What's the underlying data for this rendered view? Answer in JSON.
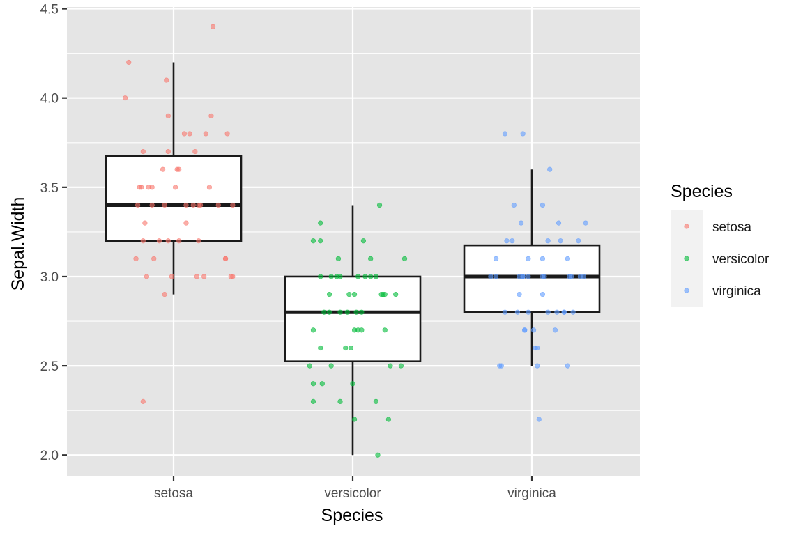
{
  "chart_data": {
    "type": "boxplot",
    "xlabel": "Species",
    "ylabel": "Sepal.Width",
    "categories": [
      "setosa",
      "versicolor",
      "virginica"
    ],
    "ylim": [
      1.88,
      4.51
    ],
    "y_ticks": [
      2.0,
      2.5,
      3.0,
      3.5,
      4.0,
      4.5
    ],
    "y_tick_labels": [
      "2.0",
      "2.5",
      "3.0",
      "3.5",
      "4.0",
      "4.5"
    ],
    "grid": true,
    "legend": {
      "title": "Species",
      "position": "right",
      "entries": [
        {
          "label": "setosa",
          "color": "#F8766D"
        },
        {
          "label": "versicolor",
          "color": "#00BA38"
        },
        {
          "label": "virginica",
          "color": "#619CFF"
        }
      ]
    },
    "boxes": [
      {
        "category": "setosa",
        "whisker_low": 2.9,
        "q1": 3.2,
        "median": 3.4,
        "q3": 3.675,
        "whisker_high": 4.2
      },
      {
        "category": "versicolor",
        "whisker_low": 2.0,
        "q1": 2.525,
        "median": 2.8,
        "q3": 3.0,
        "whisker_high": 3.4
      },
      {
        "category": "virginica",
        "whisker_low": 2.5,
        "q1": 2.8,
        "median": 3.0,
        "q3": 3.175,
        "whisker_high": 3.6
      }
    ],
    "points": {
      "setosa": [
        [
          -0.19,
          3.5
        ],
        [
          0.13,
          3.0
        ],
        [
          -0.08,
          3.2
        ],
        [
          -0.11,
          3.1
        ],
        [
          0.02,
          3.6
        ],
        [
          -0.03,
          3.9
        ],
        [
          0.25,
          3.4
        ],
        [
          0.07,
          3.4
        ],
        [
          -0.05,
          2.9
        ],
        [
          0.29,
          3.1
        ],
        [
          -0.17,
          3.7
        ],
        [
          0.11,
          3.4
        ],
        [
          0.33,
          3.0
        ],
        [
          -0.01,
          3.0
        ],
        [
          -0.27,
          4.0
        ],
        [
          0.22,
          4.4
        ],
        [
          0.21,
          3.9
        ],
        [
          -0.14,
          3.5
        ],
        [
          0.06,
          3.8
        ],
        [
          0.3,
          3.8
        ],
        [
          0.15,
          3.4
        ],
        [
          -0.03,
          3.7
        ],
        [
          -0.06,
          3.6
        ],
        [
          0.07,
          3.3
        ],
        [
          -0.2,
          3.4
        ],
        [
          0.17,
          3.0
        ],
        [
          0.33,
          3.4
        ],
        [
          0.2,
          3.5
        ],
        [
          0.14,
          3.4
        ],
        [
          0.03,
          3.2
        ],
        [
          -0.21,
          3.1
        ],
        [
          -0.05,
          3.4
        ],
        [
          -0.04,
          4.1
        ],
        [
          -0.25,
          4.2
        ],
        [
          0.29,
          3.1
        ],
        [
          -0.17,
          3.2
        ],
        [
          -0.18,
          3.5
        ],
        [
          0.03,
          3.6
        ],
        [
          -0.15,
          3.0
        ],
        [
          -0.12,
          3.4
        ],
        [
          -0.12,
          3.5
        ],
        [
          -0.17,
          2.3
        ],
        [
          0.14,
          3.2
        ],
        [
          0.01,
          3.5
        ],
        [
          0.18,
          3.8
        ],
        [
          0.32,
          3.0
        ],
        [
          0.09,
          3.8
        ],
        [
          -0.03,
          3.2
        ],
        [
          0.12,
          3.7
        ],
        [
          -0.16,
          3.3
        ]
      ],
      "versicolor": [
        [
          -0.18,
          3.2
        ],
        [
          0.06,
          3.2
        ],
        [
          0.1,
          3.1
        ],
        [
          -0.07,
          2.3
        ],
        [
          -0.16,
          2.8
        ],
        [
          -0.13,
          2.8
        ],
        [
          -0.18,
          3.3
        ],
        [
          -0.17,
          2.4
        ],
        [
          0.24,
          2.9
        ],
        [
          -0.22,
          2.7
        ],
        [
          0.14,
          2.0
        ],
        [
          -0.18,
          3.0
        ],
        [
          0.01,
          2.2
        ],
        [
          0.18,
          2.9
        ],
        [
          -0.13,
          2.9
        ],
        [
          0.29,
          3.1
        ],
        [
          -0.07,
          3.0
        ],
        [
          0.01,
          2.7
        ],
        [
          0.2,
          2.2
        ],
        [
          0.27,
          2.5
        ],
        [
          -0.22,
          3.2
        ],
        [
          0.05,
          2.8
        ],
        [
          -0.12,
          2.5
        ],
        [
          -0.03,
          2.8
        ],
        [
          0.16,
          2.9
        ],
        [
          0.1,
          3.0
        ],
        [
          -0.07,
          2.8
        ],
        [
          0.13,
          3.0
        ],
        [
          -0.02,
          2.9
        ],
        [
          -0.18,
          2.6
        ],
        [
          0.0,
          2.4
        ],
        [
          -0.22,
          2.4
        ],
        [
          0.05,
          2.7
        ],
        [
          0.18,
          2.7
        ],
        [
          -0.12,
          3.0
        ],
        [
          0.15,
          3.4
        ],
        [
          -0.08,
          3.1
        ],
        [
          -0.22,
          2.3
        ],
        [
          0.03,
          3.0
        ],
        [
          -0.24,
          2.5
        ],
        [
          -0.01,
          2.6
        ],
        [
          0.07,
          3.0
        ],
        [
          -0.04,
          2.6
        ],
        [
          0.13,
          2.3
        ],
        [
          0.03,
          2.7
        ],
        [
          -0.09,
          3.0
        ],
        [
          0.01,
          2.9
        ],
        [
          0.17,
          2.9
        ],
        [
          0.21,
          2.5
        ],
        [
          0.02,
          2.8
        ]
      ],
      "virginica": [
        [
          0.15,
          3.3
        ],
        [
          -0.04,
          2.7
        ],
        [
          0.07,
          3.0
        ],
        [
          -0.07,
          2.9
        ],
        [
          -0.02,
          3.0
        ],
        [
          0.27,
          3.0
        ],
        [
          0.03,
          2.5
        ],
        [
          0.06,
          2.9
        ],
        [
          -0.17,
          2.5
        ],
        [
          0.1,
          3.6
        ],
        [
          -0.11,
          3.2
        ],
        [
          0.13,
          2.7
        ],
        [
          -0.05,
          3.0
        ],
        [
          0.2,
          2.5
        ],
        [
          -0.02,
          2.8
        ],
        [
          0.16,
          3.2
        ],
        [
          -0.05,
          3.0
        ],
        [
          -0.15,
          3.8
        ],
        [
          0.03,
          2.6
        ],
        [
          0.04,
          2.2
        ],
        [
          0.26,
          3.2
        ],
        [
          -0.15,
          2.8
        ],
        [
          0.09,
          2.8
        ],
        [
          -0.04,
          2.7
        ],
        [
          0.3,
          3.3
        ],
        [
          -0.14,
          3.2
        ],
        [
          -0.08,
          2.8
        ],
        [
          0.06,
          3.0
        ],
        [
          0.18,
          2.8
        ],
        [
          -0.07,
          3.0
        ],
        [
          0.18,
          2.8
        ],
        [
          -0.05,
          3.8
        ],
        [
          0.23,
          2.8
        ],
        [
          0.14,
          2.8
        ],
        [
          0.02,
          2.6
        ],
        [
          0.29,
          3.0
        ],
        [
          -0.1,
          3.4
        ],
        [
          -0.02,
          3.1
        ],
        [
          -0.2,
          3.0
        ],
        [
          0.2,
          3.1
        ],
        [
          0.06,
          3.1
        ],
        [
          -0.2,
          3.1
        ],
        [
          0.01,
          2.7
        ],
        [
          0.09,
          3.2
        ],
        [
          -0.06,
          3.3
        ],
        [
          0.21,
          3.0
        ],
        [
          -0.18,
          2.5
        ],
        [
          0.22,
          3.0
        ],
        [
          0.06,
          3.4
        ],
        [
          -0.23,
          3.0
        ]
      ]
    }
  }
}
